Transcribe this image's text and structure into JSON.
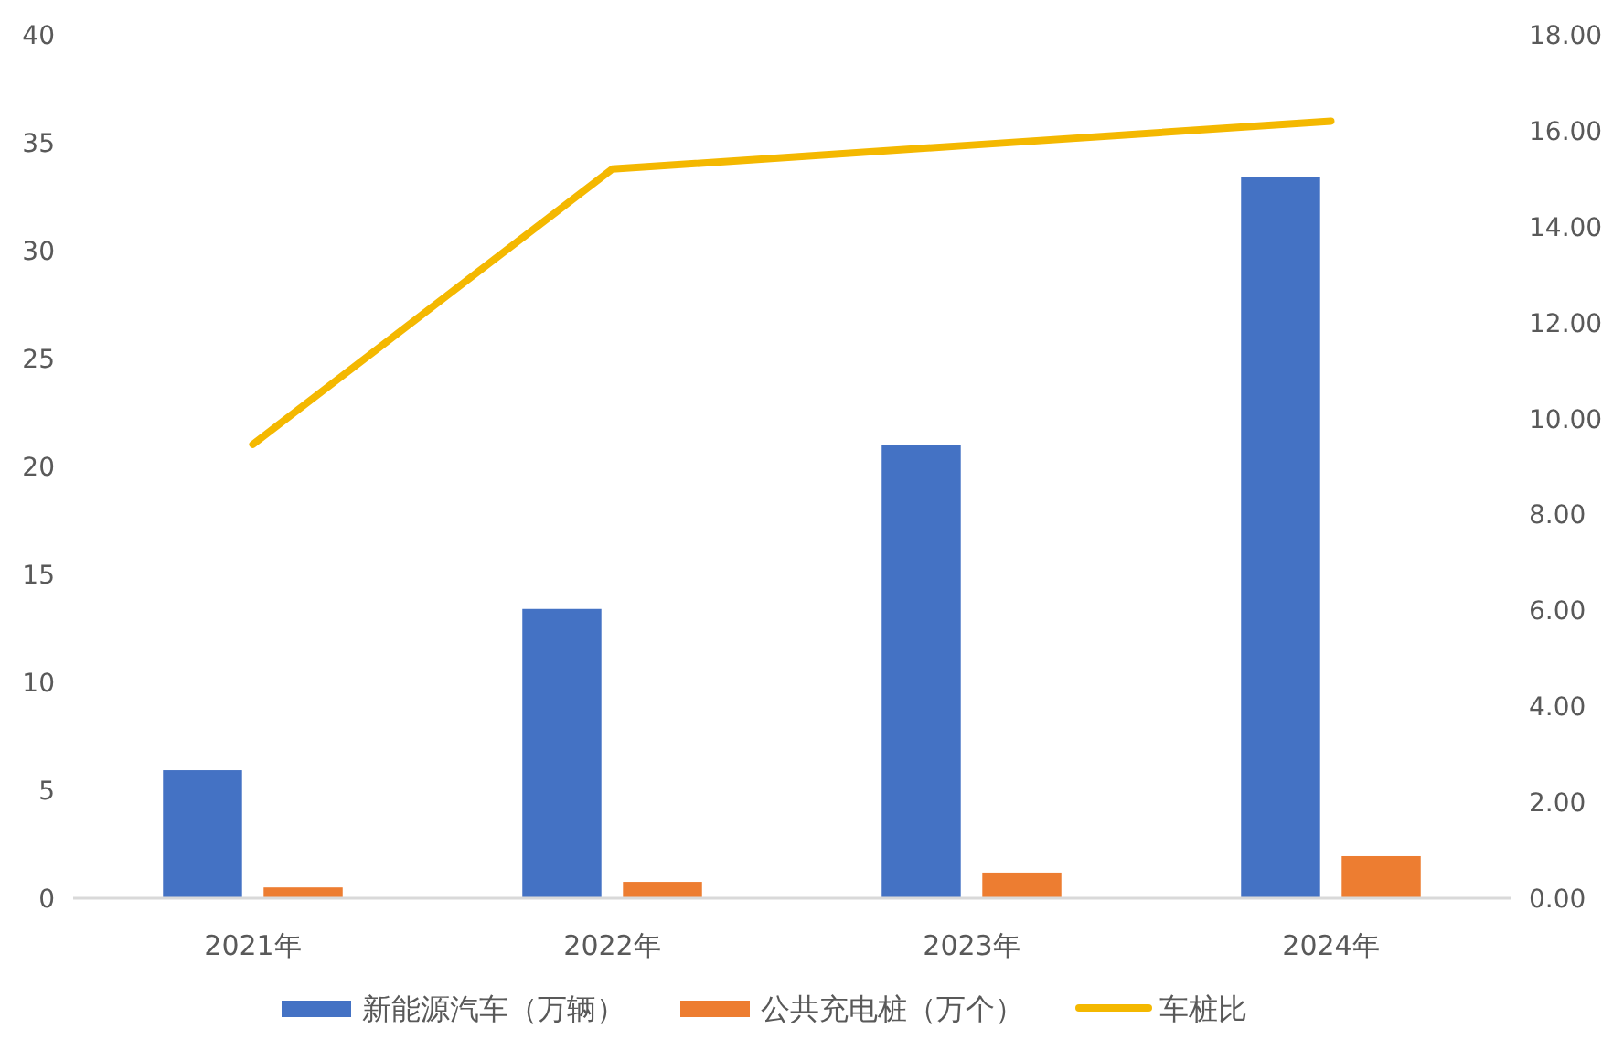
{
  "chart_data": {
    "type": "bar",
    "categories": [
      "2021年",
      "2022年",
      "2023年",
      "2024年"
    ],
    "series": [
      {
        "name": "新能源汽车（万辆）",
        "color": "#4472c4",
        "values": [
          5.93,
          13.4,
          21.0,
          33.4
        ]
      },
      {
        "name": "公共充电桩（万个）",
        "color": "#ed7d31",
        "values": [
          0.5,
          0.76,
          1.19,
          1.95
        ]
      },
      {
        "name": "车桩比",
        "color": "#f4b800",
        "type": "line",
        "axis": "y2",
        "values": [
          9.46,
          15.2,
          15.7,
          16.2
        ]
      }
    ],
    "ylim": [
      0,
      40
    ],
    "yticks": [
      0,
      5,
      10,
      15,
      20,
      25,
      30,
      35,
      40
    ],
    "y2lim": [
      0,
      18
    ],
    "y2ticks": [
      {
        "value": 0,
        "label": "0.00"
      },
      {
        "value": 2,
        "label": "2.00"
      },
      {
        "value": 4,
        "label": "4.00"
      },
      {
        "value": 6,
        "label": "6.00"
      },
      {
        "value": 8,
        "label": "8.00"
      },
      {
        "value": 10,
        "label": "10.00"
      },
      {
        "value": 12,
        "label": "12.00"
      },
      {
        "value": 14,
        "label": "14.00"
      },
      {
        "value": 16,
        "label": "16.00"
      },
      {
        "value": 18,
        "label": "18.00"
      }
    ],
    "grid": false,
    "legend": "bottom",
    "marker": "none"
  }
}
